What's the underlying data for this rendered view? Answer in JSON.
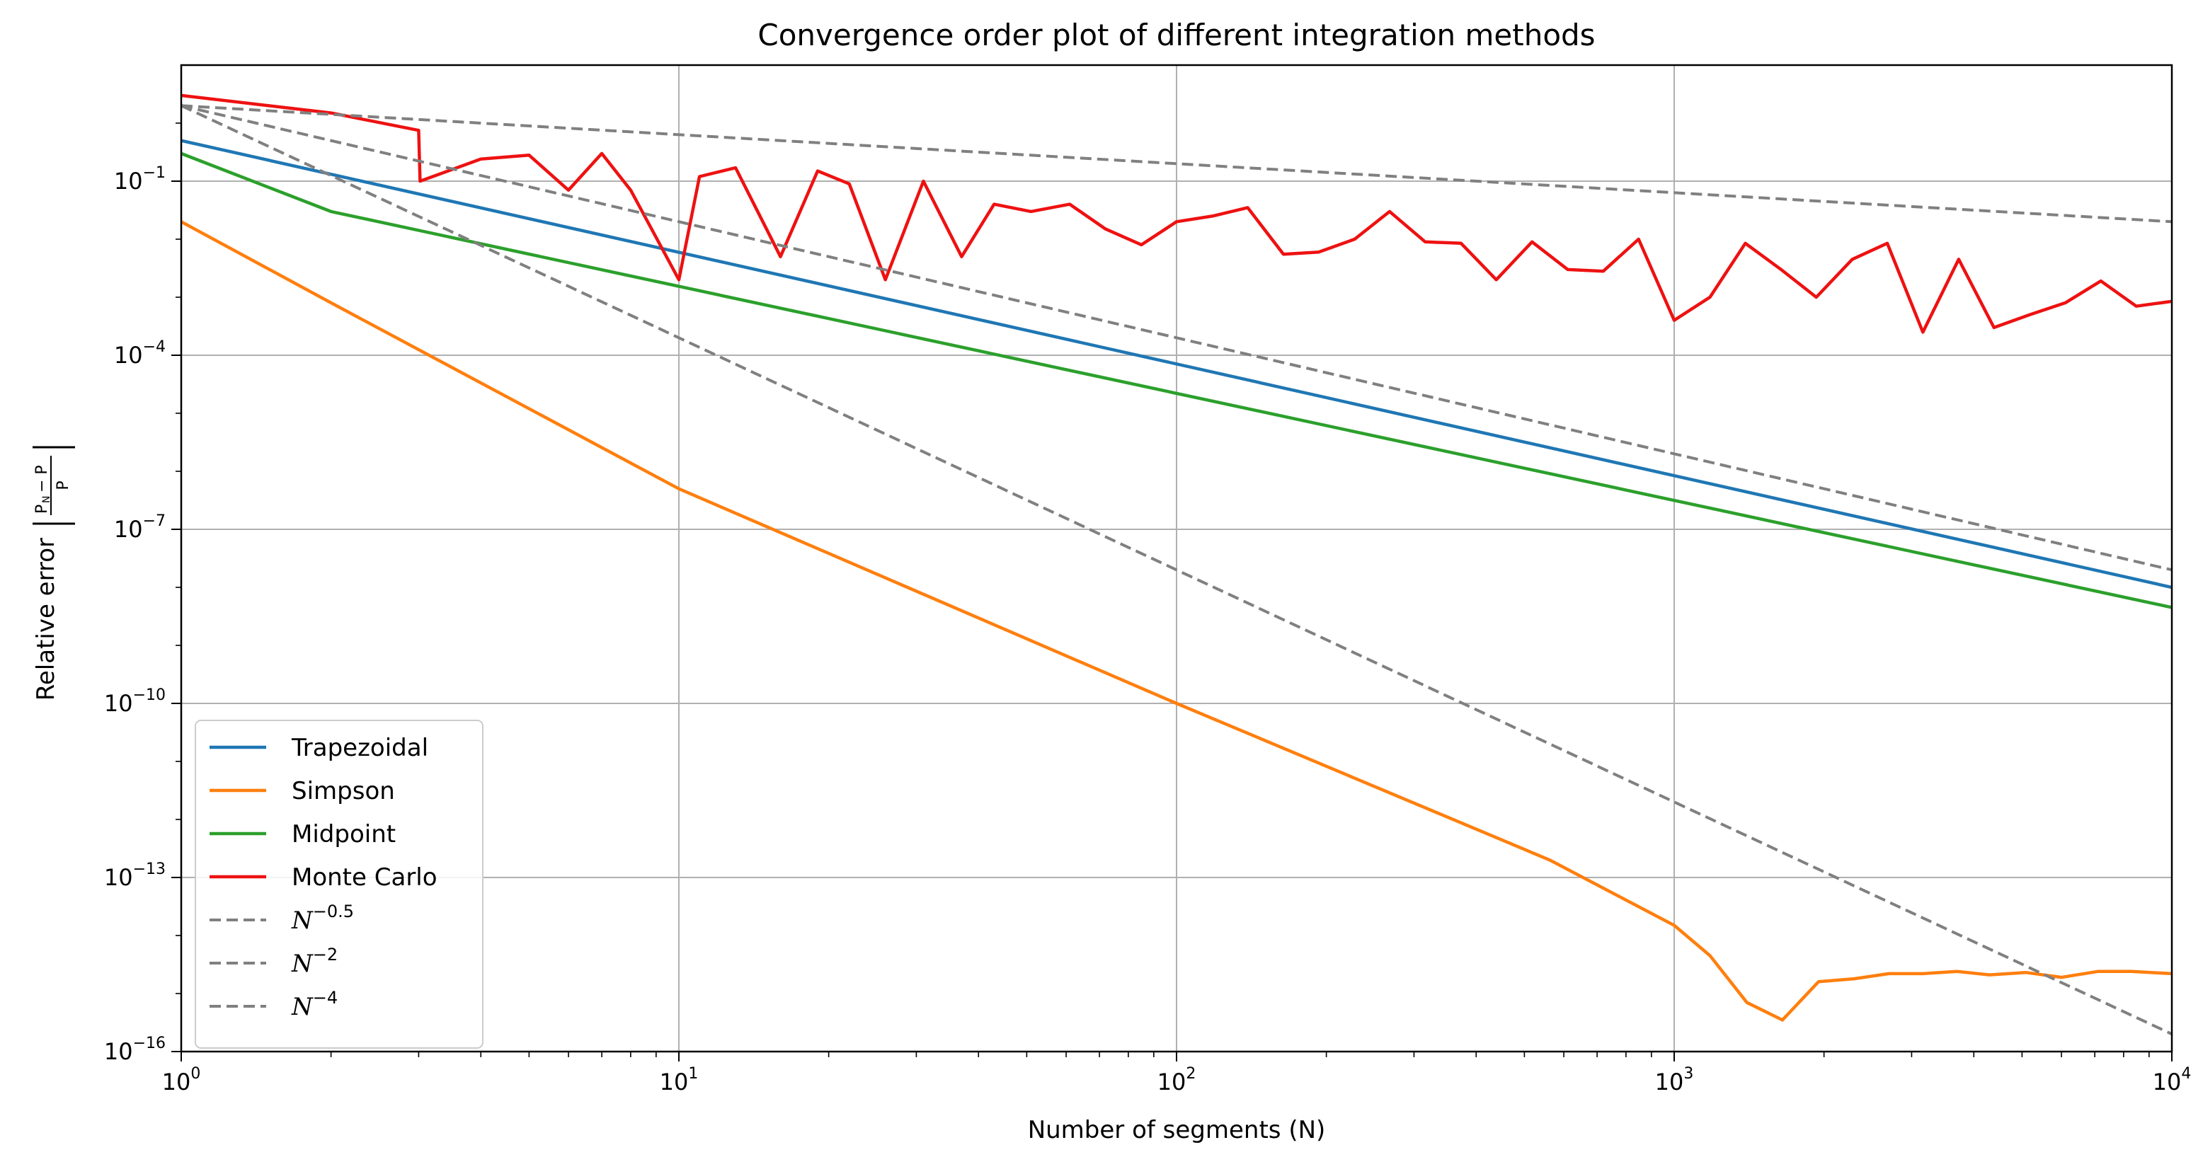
{
  "chart_data": {
    "type": "line",
    "title": "Convergence order plot of different integration methods",
    "xlabel": "Number of segments (N)",
    "ylabel": "Relative error",
    "ylabel_formula": {
      "numerator": "P",
      "numerator_sub": "N",
      "numerator_rest": "− P",
      "denominator": "P"
    },
    "x_scale": "log",
    "y_scale": "log",
    "xlim": [
      1,
      10000
    ],
    "ylim": [
      1e-16,
      10
    ],
    "grid": true,
    "legend_position": "lower-left",
    "x_ticks": [
      {
        "base": "10",
        "exp": "0",
        "value": 1
      },
      {
        "base": "10",
        "exp": "1",
        "value": 10
      },
      {
        "base": "10",
        "exp": "2",
        "value": 100
      },
      {
        "base": "10",
        "exp": "3",
        "value": 1000
      },
      {
        "base": "10",
        "exp": "4",
        "value": 10000
      }
    ],
    "y_ticks": [
      {
        "base": "10",
        "exp": "−1",
        "value": 0.1
      },
      {
        "base": "10",
        "exp": "−4",
        "value": 0.0001
      },
      {
        "base": "10",
        "exp": "−7",
        "value": 1e-07
      },
      {
        "base": "10",
        "exp": "−10",
        "value": 1e-10
      },
      {
        "base": "10",
        "exp": "−13",
        "value": 1e-13
      },
      {
        "base": "10",
        "exp": "−16",
        "value": 1e-16
      }
    ],
    "series": [
      {
        "name": "Trapezoidal",
        "color": "#1f77b4",
        "dash": "solid",
        "points": [
          [
            1,
            0.5
          ],
          [
            10000,
            1e-08
          ]
        ]
      },
      {
        "name": "Simpson",
        "color": "#ff7f0e",
        "dash": "solid",
        "points": [
          [
            1,
            0.02
          ],
          [
            2,
            0.0008
          ],
          [
            10,
            5e-07
          ],
          [
            100,
            1e-10
          ],
          [
            562,
            2e-13
          ],
          [
            1000,
            1.5e-14
          ],
          [
            1180,
            4.5e-15
          ],
          [
            1400,
            7e-16
          ],
          [
            1650,
            3.5e-16
          ],
          [
            1950,
            1.6e-15
          ],
          [
            2300,
            1.8e-15
          ],
          [
            2700,
            2.2e-15
          ],
          [
            3160,
            2.2e-15
          ],
          [
            3700,
            2.4e-15
          ],
          [
            4300,
            2.1e-15
          ],
          [
            5100,
            2.3e-15
          ],
          [
            6000,
            1.9e-15
          ],
          [
            7100,
            2.4e-15
          ],
          [
            8300,
            2.4e-15
          ],
          [
            10000,
            2.2e-15
          ]
        ]
      },
      {
        "name": "Midpoint",
        "color": "#2ca02c",
        "dash": "solid",
        "points": [
          [
            1,
            0.3
          ],
          [
            2,
            0.03
          ],
          [
            10000,
            4.5e-09
          ]
        ]
      },
      {
        "name": "Monte Carlo",
        "color": "#ee1111",
        "dash": "solid",
        "points": [
          [
            1,
            3
          ],
          [
            2,
            1.5
          ],
          [
            3,
            0.75
          ],
          [
            3.02,
            0.1
          ],
          [
            4,
            0.24
          ],
          [
            5,
            0.28
          ],
          [
            6,
            0.07
          ],
          [
            7,
            0.3
          ],
          [
            8,
            0.07
          ],
          [
            10,
            0.002
          ],
          [
            11,
            0.12
          ],
          [
            13,
            0.17
          ],
          [
            16,
            0.005
          ],
          [
            19,
            0.15
          ],
          [
            22,
            0.09
          ],
          [
            26,
            0.002
          ],
          [
            31,
            0.1
          ],
          [
            37,
            0.005
          ],
          [
            43,
            0.04
          ],
          [
            51,
            0.03
          ],
          [
            61,
            0.04
          ],
          [
            72,
            0.015
          ],
          [
            85,
            0.008
          ],
          [
            100,
            0.02
          ],
          [
            118,
            0.025
          ],
          [
            139,
            0.035
          ],
          [
            164,
            0.0055
          ],
          [
            193,
            0.006
          ],
          [
            228,
            0.01
          ],
          [
            268,
            0.03
          ],
          [
            316,
            0.009
          ],
          [
            373,
            0.0085
          ],
          [
            439,
            0.002
          ],
          [
            518,
            0.009
          ],
          [
            611,
            0.003
          ],
          [
            720,
            0.0028
          ],
          [
            848,
            0.01
          ],
          [
            1000,
            0.0004
          ],
          [
            1180,
            0.001
          ],
          [
            1390,
            0.0085
          ],
          [
            1640,
            0.003
          ],
          [
            1930,
            0.001
          ],
          [
            2280,
            0.0045
          ],
          [
            2680,
            0.0085
          ],
          [
            3160,
            0.00025
          ],
          [
            3730,
            0.0045
          ],
          [
            4390,
            0.0003
          ],
          [
            5180,
            0.0005
          ],
          [
            6110,
            0.0008
          ],
          [
            7200,
            0.0019
          ],
          [
            8480,
            0.0007
          ],
          [
            10000,
            0.00085
          ]
        ]
      },
      {
        "name": "N⁻⁰·⁵",
        "legend_base": "N",
        "legend_exp": "−0.5",
        "color": "#808080",
        "dash": "dashed",
        "points": [
          [
            1,
            2
          ],
          [
            10000,
            0.02
          ]
        ]
      },
      {
        "name": "N⁻²",
        "legend_base": "N",
        "legend_exp": "−2",
        "color": "#808080",
        "dash": "dashed",
        "points": [
          [
            1,
            2
          ],
          [
            10000,
            2e-08
          ]
        ]
      },
      {
        "name": "N⁻⁴",
        "legend_base": "N",
        "legend_exp": "−4",
        "color": "#808080",
        "dash": "dashed",
        "points": [
          [
            1,
            2
          ],
          [
            10000,
            2e-16
          ]
        ]
      }
    ]
  }
}
